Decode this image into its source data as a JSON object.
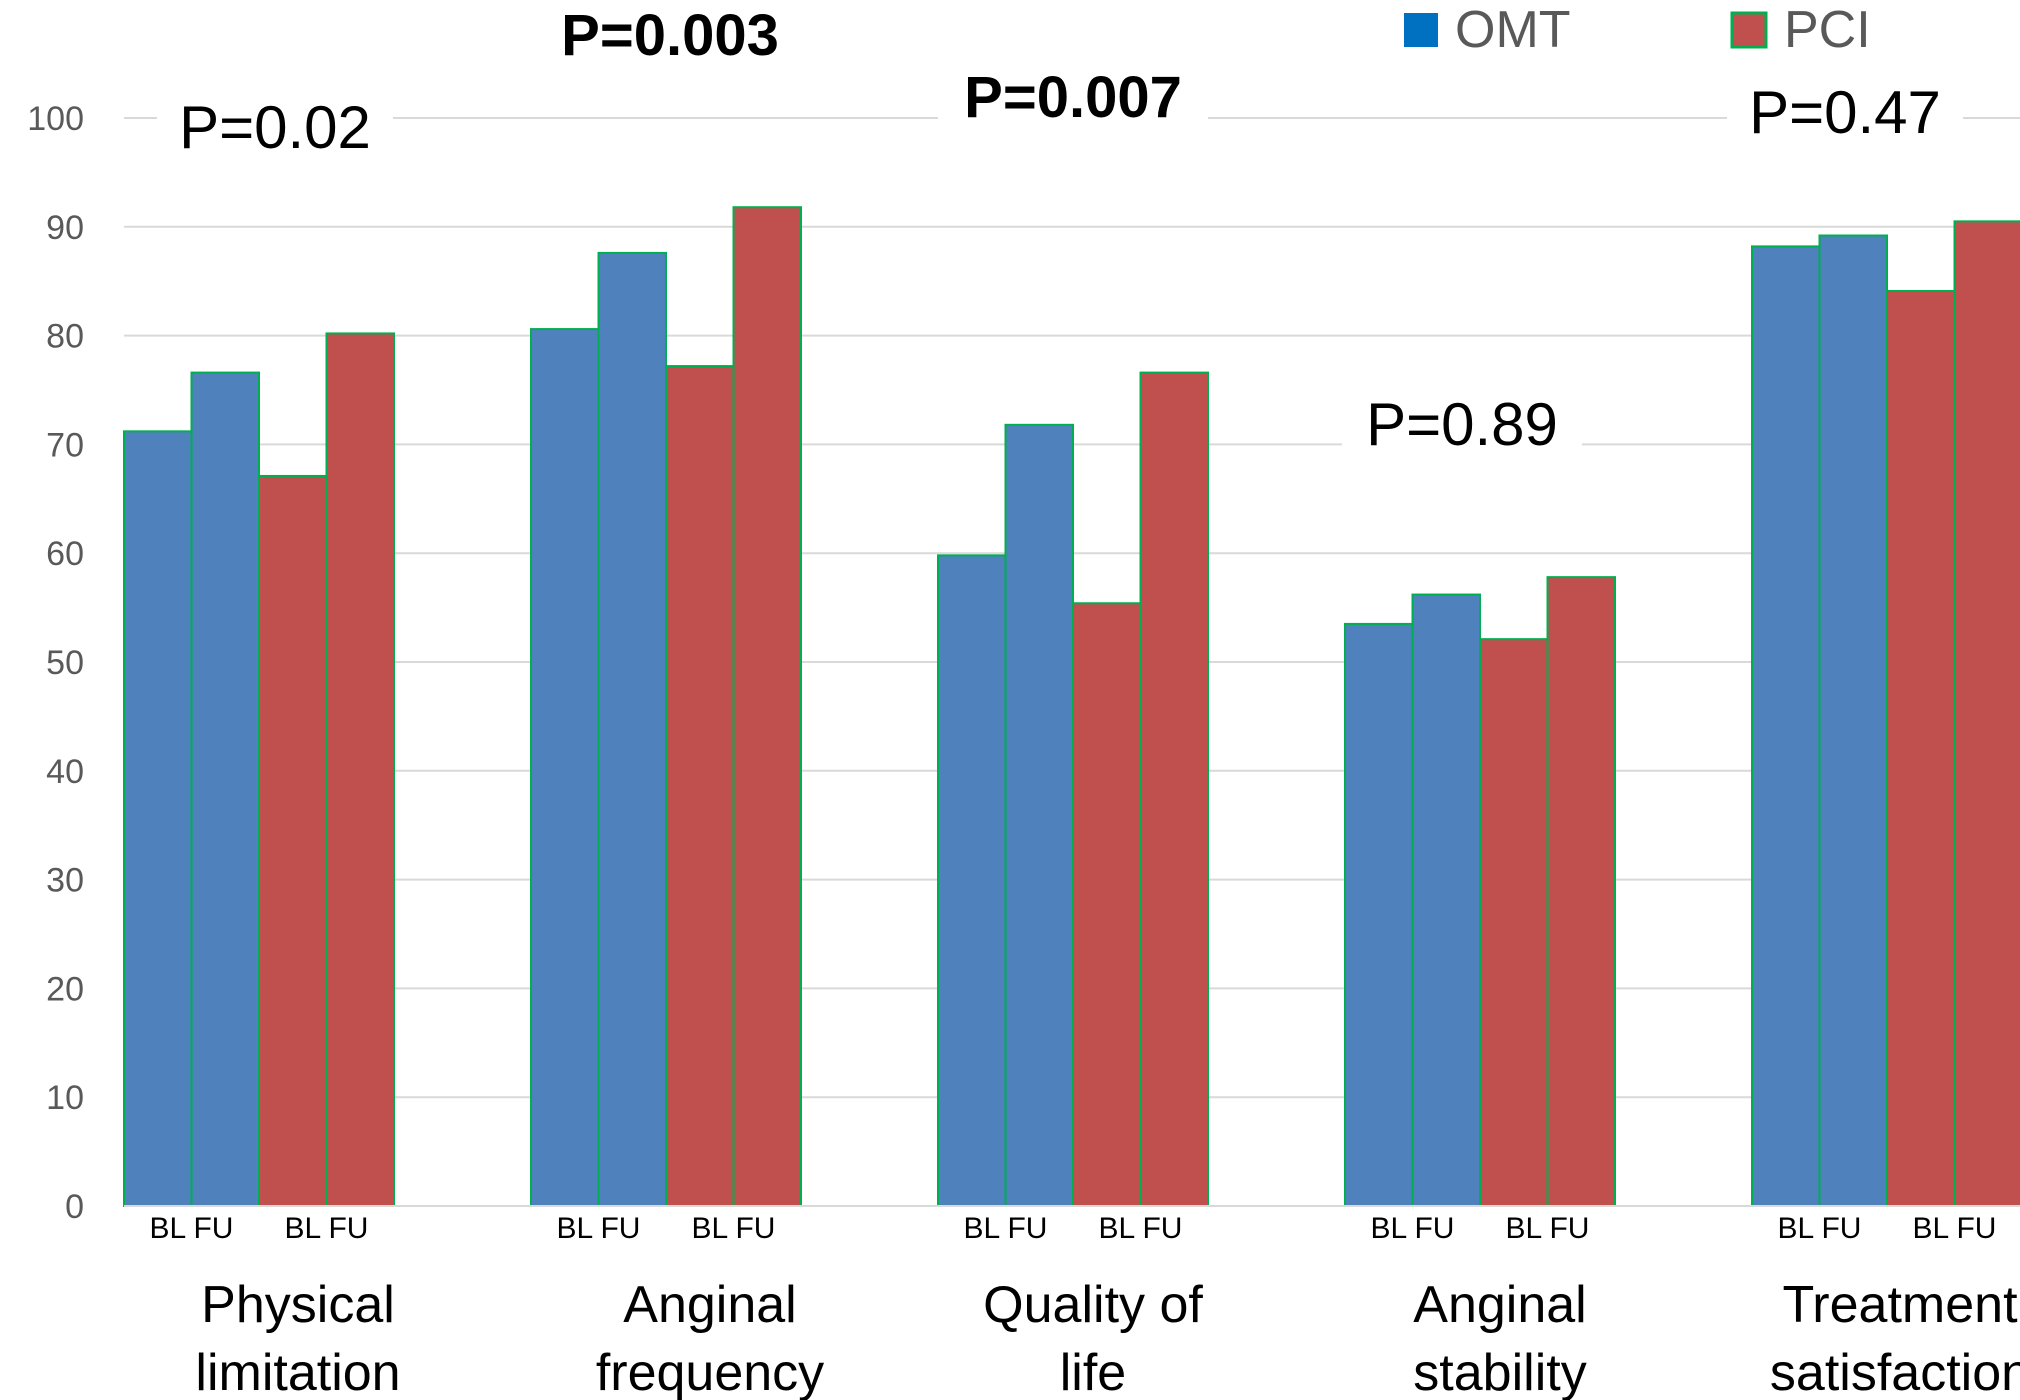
{
  "chart_data": {
    "type": "bar",
    "title": "",
    "xlabel": "",
    "ylabel": "",
    "ylim": [
      0,
      100
    ],
    "yticks": [
      0,
      10,
      20,
      30,
      40,
      50,
      60,
      70,
      80,
      90,
      100
    ],
    "grid": true,
    "legend": {
      "position": "top-right",
      "entries": [
        "OMT",
        "PCI"
      ]
    },
    "categories": [
      [
        "Physical",
        "limitation"
      ],
      [
        "Anginal",
        "frequency"
      ],
      [
        "Quality of",
        "life"
      ],
      [
        "Anginal",
        "stability"
      ],
      [
        "Treatment",
        "satisfaction"
      ]
    ],
    "sub_labels": [
      "BL FU",
      "BL FU"
    ],
    "series": [
      {
        "name": "OMT",
        "color": "#4f81bd",
        "bl": [
          71.2,
          80.6,
          59.8,
          53.5,
          88.2
        ],
        "fu": [
          76.6,
          87.6,
          71.8,
          56.2,
          89.2
        ]
      },
      {
        "name": "PCI",
        "color": "#c0504d",
        "bl": [
          67.1,
          77.2,
          55.4,
          52.1,
          84.1
        ],
        "fu": [
          80.2,
          91.8,
          76.6,
          57.8,
          90.5
        ]
      }
    ],
    "annotations": [
      {
        "text": "P=0.02",
        "bold": false
      },
      {
        "text": "P=0.003",
        "bold": true
      },
      {
        "text": "P=0.007",
        "bold": true
      },
      {
        "text": "P=0.89",
        "bold": false
      },
      {
        "text": "P=0.47",
        "bold": false
      }
    ],
    "colors": {
      "omt_legend": "#0070c0",
      "bar_border": "#00b050",
      "grid": "#d9d9d9",
      "axis_text": "#595959"
    }
  }
}
